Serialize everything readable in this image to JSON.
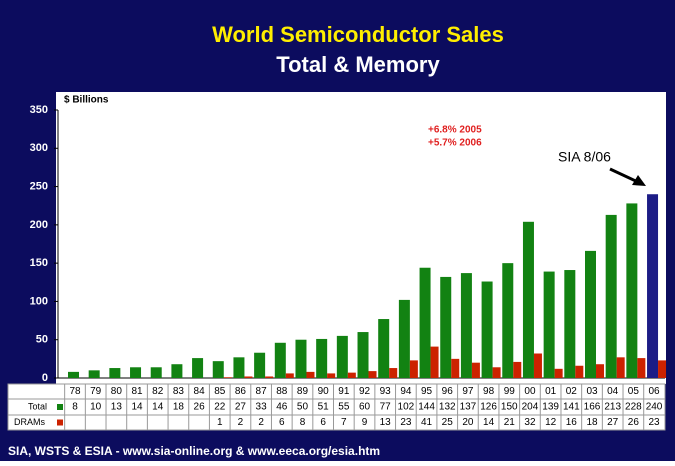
{
  "chart_data": {
    "type": "bar",
    "title": "World Semiconductor Sales",
    "subtitle": "Total & Memory",
    "y_label": "$ Billions",
    "source": "SIA, WSTS & ESIA  - www.sia-online.org & www.eeca.org/esia.htm",
    "annotations": [
      "+6.8% 2005",
      "+5.7% 2006",
      "SIA 8/06"
    ],
    "categories": [
      "78",
      "79",
      "80",
      "81",
      "82",
      "83",
      "84",
      "85",
      "86",
      "87",
      "88",
      "89",
      "90",
      "91",
      "92",
      "93",
      "94",
      "95",
      "96",
      "97",
      "98",
      "99",
      "00",
      "01",
      "02",
      "03",
      "04",
      "05",
      "06"
    ],
    "series": [
      {
        "name": "Total",
        "color": "#128212",
        "colors": [
          "#128212",
          "#128212",
          "#128212",
          "#128212",
          "#128212",
          "#128212",
          "#128212",
          "#128212",
          "#128212",
          "#128212",
          "#128212",
          "#128212",
          "#128212",
          "#128212",
          "#128212",
          "#128212",
          "#128212",
          "#128212",
          "#128212",
          "#128212",
          "#128212",
          "#128212",
          "#128212",
          "#128212",
          "#128212",
          "#128212",
          "#128212",
          "#128212",
          "#1c1c86"
        ],
        "values": [
          8,
          10,
          13,
          14,
          14,
          18,
          26,
          22,
          27,
          33,
          46,
          50,
          51,
          55,
          60,
          77,
          102,
          144,
          132,
          137,
          126,
          150,
          204,
          139,
          141,
          166,
          213,
          228,
          240
        ]
      },
      {
        "name": "DRAMs",
        "color": "#cc2200",
        "values": [
          null,
          null,
          null,
          null,
          null,
          null,
          null,
          1,
          2,
          2,
          6,
          8,
          6,
          7,
          9,
          13,
          23,
          41,
          25,
          20,
          14,
          21,
          32,
          12,
          16,
          18,
          27,
          26,
          23
        ]
      }
    ],
    "ylim": [
      0,
      350
    ],
    "yticks": [
      0,
      50,
      100,
      150,
      200,
      250,
      300,
      350
    ],
    "grid": false
  }
}
